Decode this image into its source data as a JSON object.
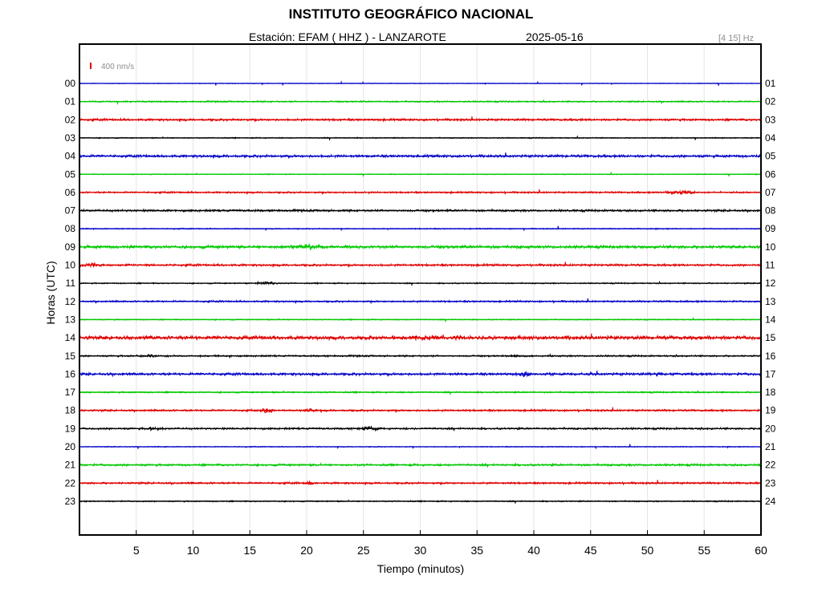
{
  "header": {
    "title": "INSTITUTO GEOGRÁFICO NACIONAL",
    "station_line": "Estación:  EFAM ( HHZ ) - LANZAROTE",
    "date": "2025-05-16",
    "filter": "[4 15] Hz"
  },
  "scale": {
    "label": "400 nm/s",
    "color": "#e00000"
  },
  "chart_data": {
    "type": "line",
    "title": "INSTITUTO GEOGRÁFICO NACIONAL",
    "xlabel": "Tiempo (minutos)",
    "ylabel": "Horas (UTC)",
    "xlim": [
      0,
      60
    ],
    "x_ticks": [
      "5",
      "10",
      "15",
      "20",
      "25",
      "30",
      "35",
      "40",
      "45",
      "50",
      "55",
      "60"
    ],
    "x_tick_values": [
      5,
      10,
      15,
      20,
      25,
      30,
      35,
      40,
      45,
      50,
      55,
      60
    ],
    "left_labels": [
      "00",
      "01",
      "02",
      "03",
      "04",
      "05",
      "06",
      "07",
      "08",
      "09",
      "10",
      "11",
      "12",
      "13",
      "14",
      "15",
      "16",
      "17",
      "18",
      "19",
      "20",
      "21",
      "22",
      "23"
    ],
    "right_labels": [
      "01",
      "02",
      "03",
      "04",
      "05",
      "06",
      "07",
      "08",
      "09",
      "10",
      "11",
      "12",
      "13",
      "14",
      "15",
      "16",
      "17",
      "18",
      "19",
      "20",
      "21",
      "22",
      "23",
      "24"
    ],
    "trace_colors": [
      "#0000c8",
      "#00c800",
      "#e00000",
      "#000000"
    ],
    "grid": true,
    "series": [
      {
        "hour": "00",
        "noise": 0.3,
        "events": []
      },
      {
        "hour": "01",
        "noise": 0.7,
        "events": []
      },
      {
        "hour": "02",
        "noise": 1.0,
        "events": []
      },
      {
        "hour": "03",
        "noise": 0.5,
        "events": []
      },
      {
        "hour": "04",
        "noise": 1.2,
        "events": []
      },
      {
        "hour": "05",
        "noise": 0.4,
        "events": []
      },
      {
        "hour": "06",
        "noise": 0.8,
        "events": [
          {
            "t": 53.0,
            "amp": 2.5,
            "dur": 2.0
          }
        ]
      },
      {
        "hour": "07",
        "noise": 1.0,
        "events": []
      },
      {
        "hour": "08",
        "noise": 0.5,
        "events": []
      },
      {
        "hour": "09",
        "noise": 1.4,
        "events": [
          {
            "t": 20.0,
            "amp": 2.5,
            "dur": 2.5
          }
        ]
      },
      {
        "hour": "10",
        "noise": 1.0,
        "events": [
          {
            "t": 1.0,
            "amp": 3.0,
            "dur": 1.0
          }
        ]
      },
      {
        "hour": "11",
        "noise": 0.6,
        "events": [
          {
            "t": 16.5,
            "amp": 2.0,
            "dur": 1.5
          }
        ]
      },
      {
        "hour": "12",
        "noise": 0.8,
        "events": []
      },
      {
        "hour": "13",
        "noise": 0.5,
        "events": []
      },
      {
        "hour": "14",
        "noise": 1.8,
        "events": [
          {
            "t": 31.0,
            "amp": 2.2,
            "dur": 4.0
          }
        ]
      },
      {
        "hour": "15",
        "noise": 0.8,
        "events": [
          {
            "t": 6.0,
            "amp": 1.8,
            "dur": 1.5
          },
          {
            "t": 38.5,
            "amp": 1.6,
            "dur": 1.2
          }
        ]
      },
      {
        "hour": "16",
        "noise": 1.2,
        "events": [
          {
            "t": 39.2,
            "amp": 2.8,
            "dur": 1.0
          },
          {
            "t": 50.9,
            "amp": 2.8,
            "dur": 0.6
          }
        ]
      },
      {
        "hour": "17",
        "noise": 0.7,
        "events": []
      },
      {
        "hour": "18",
        "noise": 0.9,
        "events": [
          {
            "t": 16.5,
            "amp": 4.0,
            "dur": 0.8
          },
          {
            "t": 20.5,
            "amp": 2.5,
            "dur": 1.0
          }
        ]
      },
      {
        "hour": "19",
        "noise": 0.9,
        "events": [
          {
            "t": 25.5,
            "amp": 3.0,
            "dur": 1.0
          },
          {
            "t": 6.5,
            "amp": 1.8,
            "dur": 1.2
          }
        ]
      },
      {
        "hour": "20",
        "noise": 0.4,
        "events": []
      },
      {
        "hour": "21",
        "noise": 1.0,
        "events": []
      },
      {
        "hour": "22",
        "noise": 0.9,
        "events": [
          {
            "t": 20.3,
            "amp": 2.5,
            "dur": 0.8
          }
        ]
      },
      {
        "hour": "23",
        "noise": 0.6,
        "events": []
      }
    ]
  }
}
